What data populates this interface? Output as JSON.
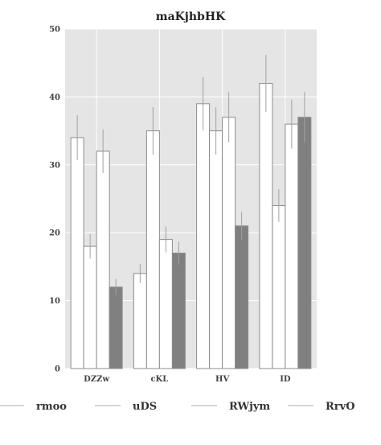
{
  "chart_data": {
    "type": "bar",
    "title": "maKjhbHK",
    "xlabel": "",
    "ylabel": "",
    "categories": [
      "DZZw",
      "cKL",
      "HV",
      "ID"
    ],
    "ylim": [
      0,
      50
    ],
    "yticks": [
      0,
      10,
      20,
      30,
      40,
      50
    ],
    "grid": true,
    "legend_position": "bottom",
    "series": [
      {
        "name": "rmoo",
        "color": "#ffffff",
        "values": [
          34,
          14,
          39,
          42
        ],
        "errors": [
          3.3,
          1.4,
          3.9,
          4.2
        ]
      },
      {
        "name": "uDS",
        "color": "#ffffff",
        "values": [
          18,
          35,
          35,
          24
        ],
        "errors": [
          1.8,
          3.5,
          3.5,
          2.4
        ]
      },
      {
        "name": "RWjym",
        "color": "#ffffff",
        "values": [
          32,
          19,
          37,
          36
        ],
        "errors": [
          3.2,
          1.9,
          3.7,
          3.6
        ]
      },
      {
        "name": "RrvO",
        "color": "#808080",
        "values": [
          12,
          17,
          21,
          37
        ],
        "errors": [
          1.2,
          1.7,
          2.1,
          3.7
        ]
      }
    ]
  }
}
